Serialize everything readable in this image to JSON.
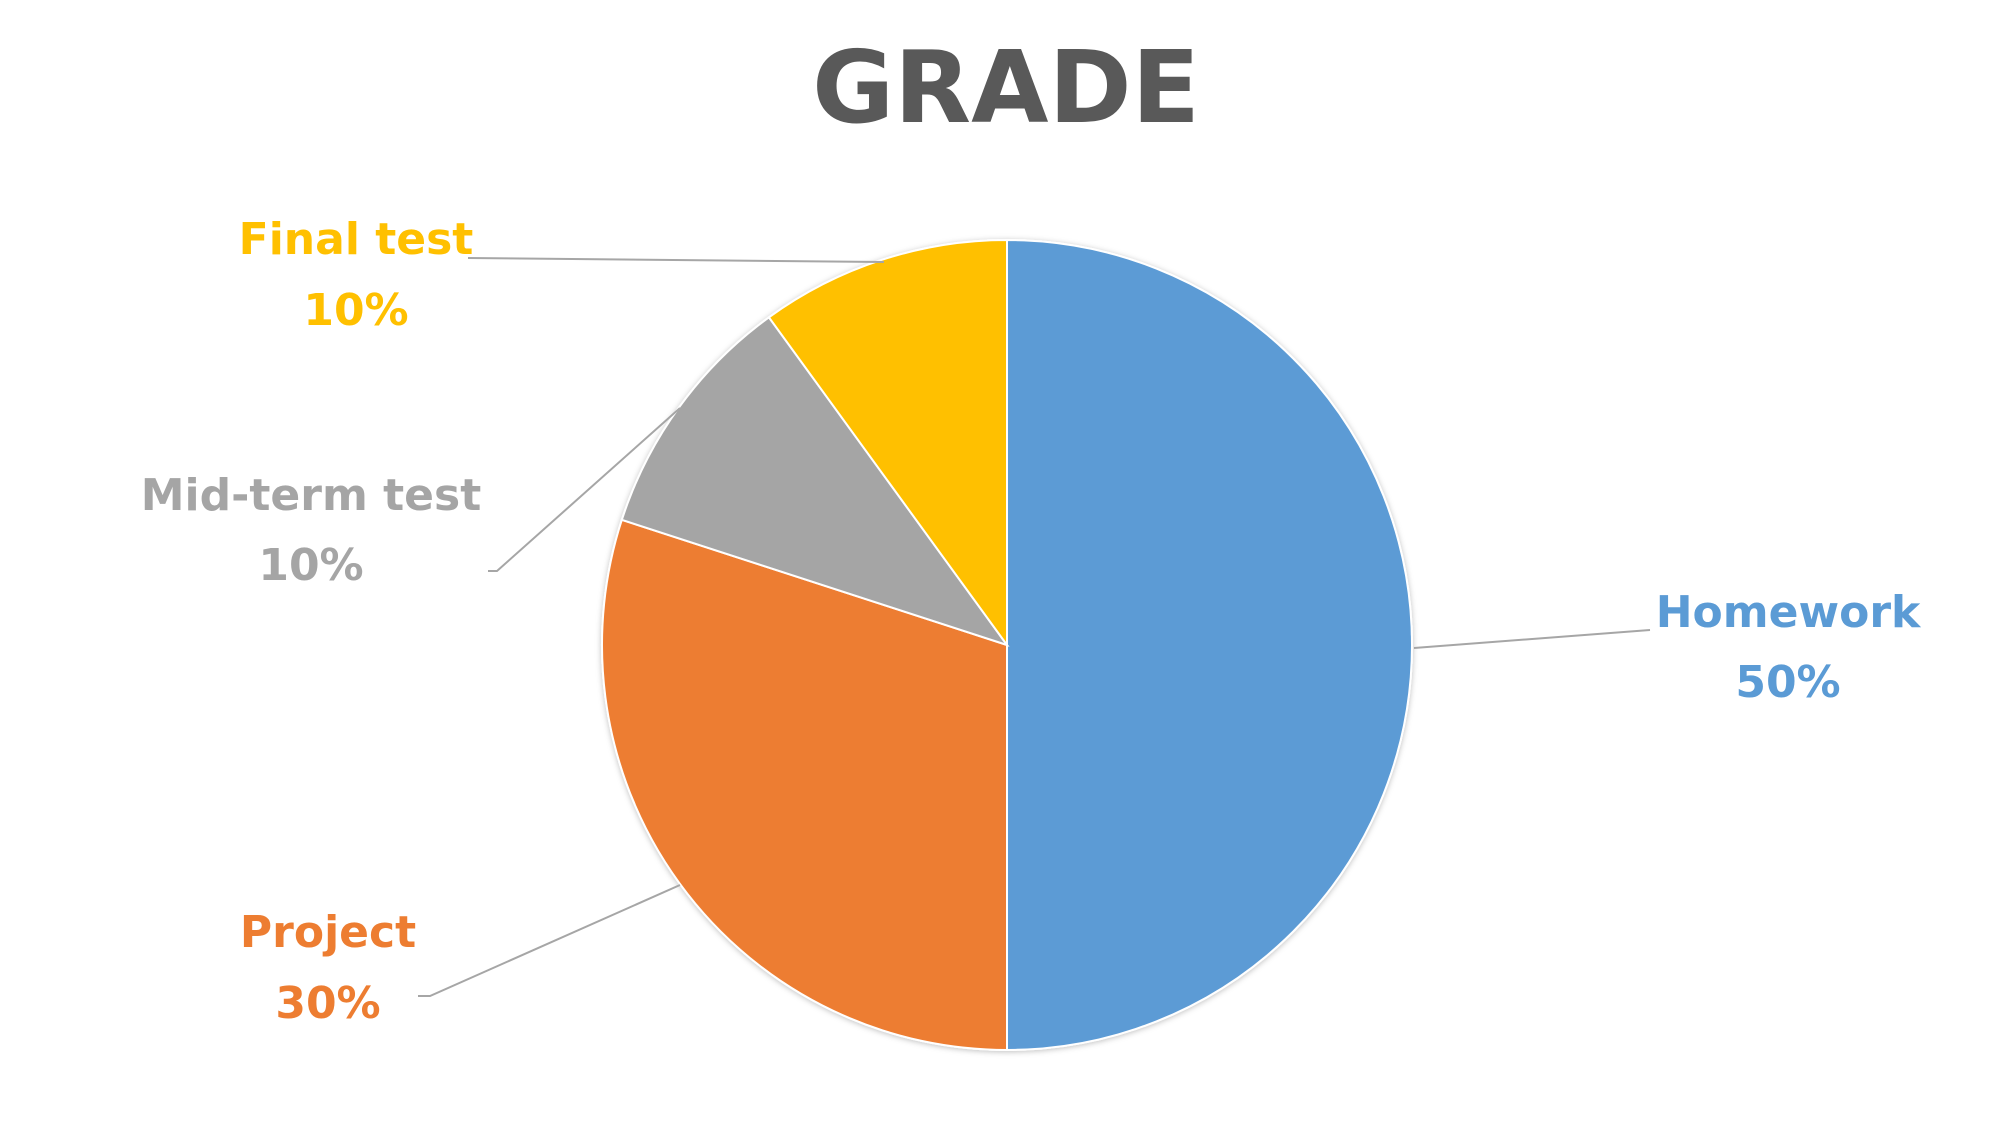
{
  "chart_data": {
    "type": "pie",
    "title": "GRADE",
    "slices": [
      {
        "name": "Homework",
        "value": 50,
        "label": "50%",
        "color": "#5b9bd5"
      },
      {
        "name": "Project",
        "value": 30,
        "label": "30%",
        "color": "#ed7d31"
      },
      {
        "name": "Mid-term test",
        "value": 10,
        "label": "10%",
        "color": "#a5a5a5"
      },
      {
        "name": "Final test",
        "value": 10,
        "label": "10%",
        "color": "#ffc000"
      }
    ],
    "start_angle_deg": 0,
    "direction": "clockwise",
    "legend": "none",
    "data_labels": "outside with leader lines"
  }
}
